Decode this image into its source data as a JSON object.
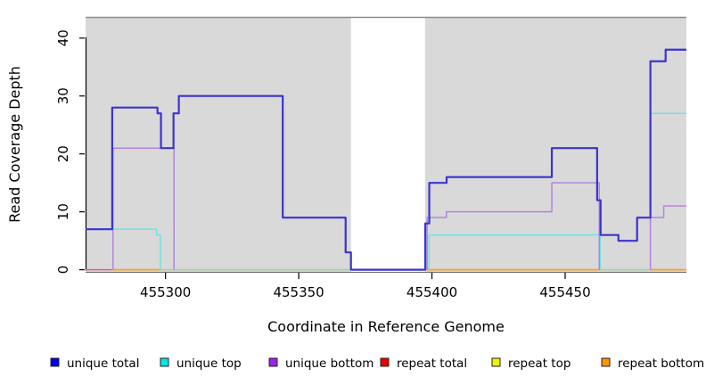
{
  "figure": {
    "xlabel": "Coordinate in Reference Genome",
    "ylabel": "Read Coverage Depth"
  },
  "legend": {
    "items": [
      {
        "label": "unique total",
        "color": "#0000ee"
      },
      {
        "label": "unique top",
        "color": "#00e5e5"
      },
      {
        "label": "unique bottom",
        "color": "#a020e8"
      },
      {
        "label": "repeat total",
        "color": "#ee0000"
      },
      {
        "label": "repeat top",
        "color": "#f2f200"
      },
      {
        "label": "repeat bottom",
        "color": "#ff9300"
      }
    ]
  },
  "chart_data": {
    "type": "line",
    "step": "after",
    "title": "",
    "xlabel": "Coordinate in Reference Genome",
    "ylabel": "Read Coverage Depth",
    "xlim": [
      455270,
      455495.5
    ],
    "ylim": [
      -0.36,
      43.65
    ],
    "x_ticks": [
      455300,
      455350,
      455400,
      455450
    ],
    "y_ticks": [
      0,
      10,
      20,
      30,
      40
    ],
    "grid": false,
    "plot_background": "#d9d9d9",
    "top_border_color": "#8c8c8c",
    "highlight_band": {
      "x0": 455369.6,
      "x1": 455397.4,
      "color": "#ffffff"
    },
    "legend_position": "bottom",
    "series": [
      {
        "name": "repeat total",
        "color": "#e0608c",
        "width": 1.5,
        "segments": [
          [
            [
              455270,
              0
            ],
            [
              455280,
              0
            ]
          ]
        ]
      },
      {
        "name": "repeat top",
        "color": "#9cd49c",
        "width": 1.5,
        "note": "renders pale green where it overlaps unique top at depth 0",
        "segments": [
          [
            [
              455298,
              0
            ],
            [
              455369.6,
              0
            ]
          ],
          [
            [
              455463.2,
              0
            ],
            [
              455482,
              0
            ]
          ]
        ]
      },
      {
        "name": "repeat bottom",
        "color": "#ff9e20",
        "width": 1.8,
        "segments": [
          [
            [
              455280,
              0
            ],
            [
              455298,
              0
            ]
          ],
          [
            [
              455398,
              0
            ],
            [
              455463.2,
              0
            ]
          ],
          [
            [
              455482,
              0
            ],
            [
              455495.5,
              0
            ]
          ]
        ]
      },
      {
        "name": "unique top",
        "color": "#72e2e2",
        "width": 1.5,
        "segments": [
          [
            [
              455270,
              7
            ],
            [
              455296.6,
              6
            ],
            [
              455298.1,
              0
            ]
          ],
          [
            [
              455398.9,
              0
            ],
            [
              455398.9,
              6
            ],
            [
              455463.2,
              6
            ],
            [
              455463.2,
              0
            ]
          ],
          [
            [
              455482,
              0
            ],
            [
              455482,
              27
            ],
            [
              455495.5,
              27
            ]
          ]
        ]
      },
      {
        "name": "unique bottom",
        "color": "#b285dd",
        "width": 1.5,
        "segments": [
          [
            [
              455280.3,
              0
            ],
            [
              455280.3,
              21
            ],
            [
              455303.2,
              21
            ],
            [
              455303.2,
              0
            ]
          ],
          [
            [
              455398.2,
              0
            ],
            [
              455398.2,
              9
            ],
            [
              455405.4,
              10
            ],
            [
              455445,
              15
            ],
            [
              455462.8,
              15
            ],
            [
              455462.8,
              0
            ]
          ],
          [
            [
              455482,
              0
            ],
            [
              455482,
              9
            ],
            [
              455487,
              11
            ],
            [
              455495.5,
              11
            ]
          ]
        ]
      },
      {
        "name": "unique total",
        "color": "#3b33d1",
        "width": 2.2,
        "segments": [
          [
            [
              455270,
              7
            ],
            [
              455280,
              28
            ],
            [
              455297,
              27
            ],
            [
              455298.3,
              21
            ],
            [
              455303,
              27
            ],
            [
              455305,
              30
            ],
            [
              455344,
              9
            ],
            [
              455367.6,
              3
            ],
            [
              455369.6,
              0
            ],
            [
              455397.5,
              8
            ],
            [
              455399,
              15
            ],
            [
              455405.5,
              16
            ],
            [
              455445,
              21
            ],
            [
              455462,
              12
            ],
            [
              455463.3,
              6
            ],
            [
              455470,
              5
            ],
            [
              455477,
              9
            ],
            [
              455482,
              36
            ],
            [
              455487.7,
              38
            ],
            [
              455495.5,
              38
            ]
          ]
        ]
      }
    ]
  }
}
